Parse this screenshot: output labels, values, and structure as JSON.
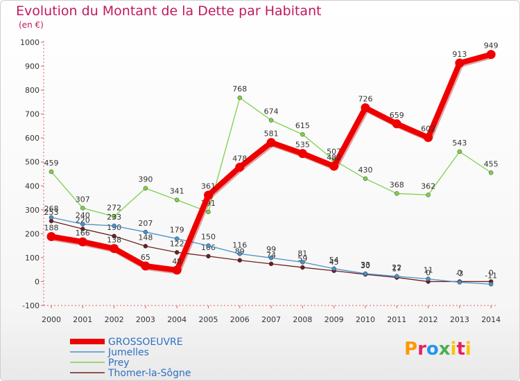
{
  "header": {
    "title": "Evolution du Montant de la Dette par Habitant",
    "unit": "(en €)"
  },
  "logo": {
    "text": "Proxiti"
  },
  "chart_data": {
    "type": "line",
    "x": [
      "2000",
      "2001",
      "2002",
      "2003",
      "2004",
      "2005",
      "2006",
      "2007",
      "2008",
      "2009",
      "2010",
      "2011",
      "2012",
      "2013",
      "2014"
    ],
    "ylim": [
      -100,
      1000
    ],
    "yticks": [
      -100,
      0,
      100,
      200,
      300,
      400,
      500,
      600,
      700,
      800,
      900,
      1000
    ],
    "grid": false,
    "legend_position": "bottom-left",
    "series": [
      {
        "name": "GROSSOEUVRE",
        "color": "#ee0000",
        "values": [
          188,
          166,
          138,
          65,
          48,
          361,
          478,
          581,
          535,
          482,
          726,
          659,
          602,
          913,
          949
        ],
        "labels": [
          "188",
          "166",
          "138",
          "65",
          "48",
          "361",
          "478",
          "581",
          "535",
          "482",
          "726",
          "659",
          "602",
          "913",
          "949"
        ]
      },
      {
        "name": "Jumelles",
        "color": "#4a90c8",
        "values": [
          268,
          240,
          233,
          207,
          179,
          150,
          116,
          99,
          81,
          54,
          33,
          22,
          11,
          -3,
          -11
        ],
        "labels": [
          "268",
          "240",
          "233",
          "207",
          "179",
          "150",
          "116",
          "99",
          "81",
          "54",
          "33",
          "22",
          "11",
          "-3",
          "-11"
        ]
      },
      {
        "name": "Prey",
        "color": "#7ed04a",
        "values": [
          459,
          307,
          272,
          390,
          341,
          291,
          768,
          674,
          615,
          507,
          430,
          368,
          362,
          543,
          455
        ],
        "labels": [
          "459",
          "307",
          "272",
          "390",
          "341",
          "291",
          "768",
          "674",
          "615",
          "507",
          "430",
          "368",
          "362",
          "543",
          "455"
        ]
      },
      {
        "name": "Thomer-la-Sôgne",
        "color": "#6b1f1f",
        "values": [
          253,
          220,
          190,
          148,
          122,
          106,
          89,
          74,
          59,
          45,
          30,
          17,
          0,
          0,
          0
        ],
        "labels": [
          "253",
          "220",
          "190",
          "148",
          "122",
          "106",
          "89",
          "74",
          "59",
          "45",
          "30",
          "17",
          "0",
          "0",
          "0"
        ]
      }
    ]
  }
}
